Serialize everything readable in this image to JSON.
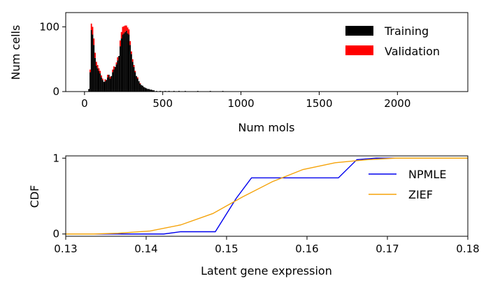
{
  "chart_data": [
    {
      "type": "bar",
      "subtype": "stacked-histogram",
      "xlabel": "Num mols",
      "ylabel": "Num cells",
      "xlim": [
        -120,
        2450
      ],
      "ylim": [
        0,
        122
      ],
      "xticks": [
        0,
        500,
        1000,
        1500,
        2000
      ],
      "xtick_labels": [
        "0",
        "500",
        "1000",
        "1500",
        "2000"
      ],
      "yticks": [
        0,
        100
      ],
      "ytick_labels": [
        "0",
        "100"
      ],
      "bin_width": 8,
      "legend": {
        "position": "upper-right",
        "entries": [
          {
            "name": "Training",
            "color": "#000000"
          },
          {
            "name": "Validation",
            "color": "#ff0000"
          }
        ]
      },
      "series": [
        {
          "name": "Training",
          "color": "#000000",
          "bins": [
            [
              24,
              4
            ],
            [
              32,
              30
            ],
            [
              40,
              95
            ],
            [
              48,
              88
            ],
            [
              56,
              72
            ],
            [
              64,
              52
            ],
            [
              72,
              40
            ],
            [
              80,
              36
            ],
            [
              88,
              32
            ],
            [
              96,
              28
            ],
            [
              104,
              22
            ],
            [
              112,
              18
            ],
            [
              120,
              15
            ],
            [
              128,
              16
            ],
            [
              136,
              18
            ],
            [
              144,
              22
            ],
            [
              152,
              26
            ],
            [
              160,
              20
            ],
            [
              168,
              24
            ],
            [
              176,
              30
            ],
            [
              184,
              34
            ],
            [
              192,
              38
            ],
            [
              200,
              42
            ],
            [
              208,
              48
            ],
            [
              216,
              55
            ],
            [
              224,
              70
            ],
            [
              232,
              82
            ],
            [
              240,
              88
            ],
            [
              248,
              90
            ],
            [
              256,
              92
            ],
            [
              264,
              94
            ],
            [
              272,
              90
            ],
            [
              280,
              88
            ],
            [
              288,
              72
            ],
            [
              296,
              58
            ],
            [
              304,
              46
            ],
            [
              312,
              38
            ],
            [
              320,
              30
            ],
            [
              328,
              24
            ],
            [
              336,
              20
            ],
            [
              344,
              16
            ],
            [
              352,
              12
            ],
            [
              360,
              10
            ],
            [
              368,
              9
            ],
            [
              376,
              7
            ],
            [
              384,
              6
            ],
            [
              392,
              5
            ],
            [
              400,
              4
            ],
            [
              408,
              4
            ],
            [
              416,
              3
            ],
            [
              424,
              3
            ],
            [
              432,
              2
            ],
            [
              440,
              2
            ],
            [
              456,
              1
            ],
            [
              480,
              1
            ],
            [
              512,
              1
            ],
            [
              536,
              1
            ],
            [
              568,
              1
            ],
            [
              600,
              1
            ],
            [
              640,
              1
            ],
            [
              720,
              1
            ],
            [
              800,
              1
            ],
            [
              880,
              1
            ]
          ]
        },
        {
          "name": "Validation",
          "color": "#ff0000",
          "bins": [
            [
              32,
              4
            ],
            [
              40,
              10
            ],
            [
              48,
              12
            ],
            [
              56,
              10
            ],
            [
              64,
              8
            ],
            [
              72,
              6
            ],
            [
              80,
              5
            ],
            [
              88,
              4
            ],
            [
              96,
              4
            ],
            [
              104,
              3
            ],
            [
              112,
              2
            ],
            [
              128,
              3
            ],
            [
              144,
              4
            ],
            [
              160,
              3
            ],
            [
              176,
              4
            ],
            [
              184,
              5
            ],
            [
              200,
              3
            ],
            [
              208,
              5
            ],
            [
              224,
              9
            ],
            [
              232,
              10
            ],
            [
              240,
              12
            ],
            [
              248,
              11
            ],
            [
              256,
              10
            ],
            [
              264,
              8
            ],
            [
              272,
              9
            ],
            [
              280,
              8
            ],
            [
              288,
              6
            ],
            [
              296,
              4
            ],
            [
              304,
              4
            ],
            [
              312,
              3
            ],
            [
              320,
              2
            ],
            [
              336,
              2
            ],
            [
              352,
              1
            ]
          ]
        }
      ]
    },
    {
      "type": "line",
      "xlabel": "Latent gene expression",
      "ylabel": "CDF",
      "xlim": [
        0.13,
        0.18
      ],
      "ylim": [
        -0.03,
        1.03
      ],
      "xticks": [
        0.13,
        0.14,
        0.15,
        0.16,
        0.17,
        0.18
      ],
      "xtick_labels": [
        "0.13",
        "0.14",
        "0.15",
        "0.16",
        "0.17",
        "0.18"
      ],
      "yticks": [
        0,
        1
      ],
      "ytick_labels": [
        "0",
        "1"
      ],
      "legend": {
        "position": "right",
        "entries": [
          {
            "name": "NPMLE",
            "color": "#0000ee"
          },
          {
            "name": "ZIEF",
            "color": "#f5a30a"
          }
        ]
      },
      "series": [
        {
          "name": "NPMLE",
          "color": "#0000ee",
          "x": [
            0.13,
            0.1422,
            0.1443,
            0.1486,
            0.1512,
            0.1531,
            0.1639,
            0.1662,
            0.1686,
            0.18
          ],
          "y": [
            0.0,
            0.0,
            0.03,
            0.03,
            0.47,
            0.74,
            0.74,
            0.98,
            1.0,
            1.0
          ]
        },
        {
          "name": "ZIEF",
          "color": "#f5a30a",
          "x": [
            0.13,
            0.1335,
            0.1365,
            0.1405,
            0.1443,
            0.1483,
            0.152,
            0.1557,
            0.1595,
            0.1635,
            0.1675,
            0.171,
            0.18
          ],
          "y": [
            0.0,
            0.0,
            0.01,
            0.04,
            0.12,
            0.27,
            0.49,
            0.69,
            0.85,
            0.94,
            0.98,
            1.0,
            1.0
          ]
        }
      ]
    }
  ]
}
